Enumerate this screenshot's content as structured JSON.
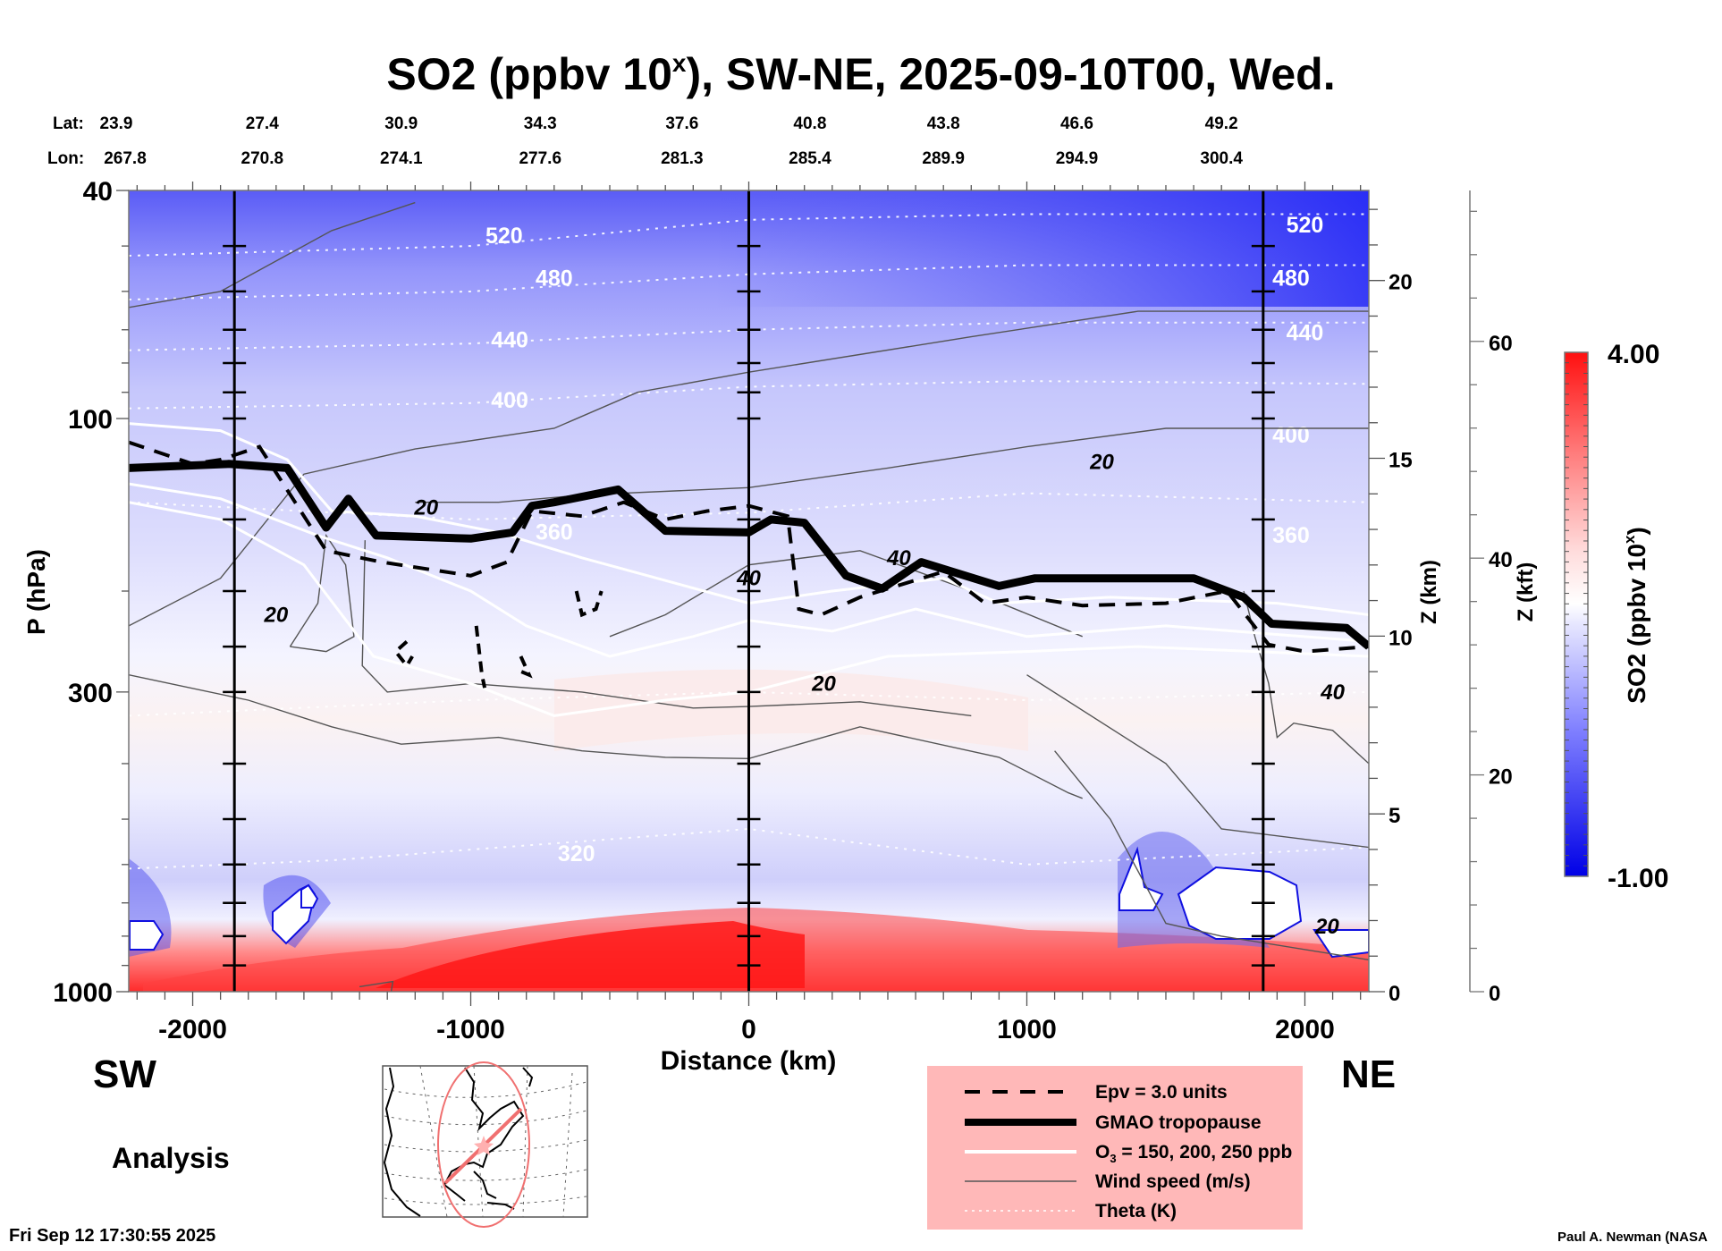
{
  "chart_data": {
    "type": "heatmap",
    "title": "SO2 (ppbv 10^x), SW-NE, 2025-09-10T00, Wed.",
    "title_parts": {
      "pre": "SO2 (ppbv 10",
      "sup": "x",
      "post": "), SW-NE, 2025-09-10T00, Wed."
    },
    "xlabel": "Distance (km)",
    "ylabel": "P (hPa)",
    "xlim": [
      -2230,
      2230
    ],
    "ylim": [
      1000,
      40
    ],
    "yscale": "log",
    "x_ticks": [
      -2000,
      -1000,
      0,
      1000,
      2000
    ],
    "y_ticks": [
      40,
      100,
      300,
      1000
    ],
    "z_km_axis": {
      "label": "Z (km)",
      "ticks": [
        0,
        5,
        10,
        15,
        20
      ]
    },
    "z_kft_axis": {
      "label": "Z (kft)",
      "ticks": [
        0,
        20,
        40,
        60
      ]
    },
    "lat_label": "Lat:",
    "lon_label": "Lon:",
    "lat": [
      "23.9",
      "27.4",
      "30.9",
      "34.3",
      "37.6",
      "40.8",
      "43.8",
      "46.6",
      "49.2"
    ],
    "lon": [
      "267.8",
      "270.8",
      "274.1",
      "277.6",
      "281.3",
      "285.4",
      "289.9",
      "294.9",
      "300.4"
    ],
    "latlon_x_km": [
      -2100,
      -1750,
      -1250,
      -750,
      -240,
      220,
      700,
      1180,
      1700
    ],
    "vertical_markers_km": [
      -1850,
      0,
      1850
    ],
    "direction_left": "SW",
    "direction_right": "NE",
    "colorbar": {
      "label_pre": "SO2 (ppbv 10",
      "label_sup": "x",
      "label_post": ")",
      "min": -1.0,
      "max": 4.0,
      "min_label": "-1.00",
      "max_label": "4.00",
      "white_at": 1.4,
      "colors": {
        "low": "#0000e6",
        "mid": "#ffffff",
        "high": "#ff0000"
      }
    },
    "theta_contours": [
      {
        "value": 520,
        "label": "520",
        "points": [
          [
            -2230,
            52
          ],
          [
            -1000,
            50
          ],
          [
            0,
            45
          ],
          [
            1000,
            44
          ],
          [
            2230,
            44
          ]
        ],
        "label_at": [
          [
            -880,
            48
          ],
          [
            2000,
            46
          ]
        ]
      },
      {
        "value": 480,
        "label": "480",
        "points": [
          [
            -2230,
            62
          ],
          [
            -1000,
            60
          ],
          [
            0,
            56
          ],
          [
            1000,
            54
          ],
          [
            2230,
            54
          ]
        ],
        "label_at": [
          [
            -700,
            57
          ],
          [
            1950,
            57
          ]
        ]
      },
      {
        "value": 440,
        "label": "440",
        "points": [
          [
            -2230,
            76
          ],
          [
            -1000,
            74
          ],
          [
            0,
            70
          ],
          [
            1000,
            68
          ],
          [
            2230,
            68
          ]
        ],
        "label_at": [
          [
            -860,
            73
          ],
          [
            2000,
            71
          ]
        ]
      },
      {
        "value": 400,
        "label": "400",
        "points": [
          [
            -2230,
            96
          ],
          [
            -1000,
            94
          ],
          [
            0,
            88
          ],
          [
            1000,
            86
          ],
          [
            2230,
            87
          ]
        ],
        "label_at": [
          [
            -860,
            93
          ],
          [
            1950,
            107
          ]
        ]
      },
      {
        "value": 360,
        "label": "360",
        "points": [
          [
            -2230,
            140
          ],
          [
            -1000,
            150
          ],
          [
            0,
            146
          ],
          [
            1000,
            135
          ],
          [
            2230,
            140
          ]
        ],
        "label_at": [
          [
            -700,
            158
          ],
          [
            1950,
            160
          ]
        ]
      },
      {
        "value": 320,
        "label": "320",
        "points": [
          [
            -2230,
            610
          ],
          [
            -1500,
            590
          ],
          [
            -1000,
            565
          ],
          [
            0,
            520
          ],
          [
            1000,
            600
          ],
          [
            2230,
            560
          ]
        ],
        "label_at": [
          [
            -620,
            575
          ]
        ]
      },
      {
        "value": 300,
        "label": "",
        "points": [
          [
            -2230,
            330
          ],
          [
            -1000,
            310
          ],
          [
            0,
            300
          ],
          [
            1000,
            310
          ],
          [
            2230,
            300
          ]
        ],
        "label_at": []
      }
    ],
    "wind_speed_labels": [
      {
        "label": "20",
        "x": -1160,
        "p": 143
      },
      {
        "label": "20",
        "x": -1700,
        "p": 220
      },
      {
        "label": "20",
        "x": 1270,
        "p": 119
      },
      {
        "label": "20",
        "x": 270,
        "p": 290
      },
      {
        "label": "40",
        "x": 0,
        "p": 190
      },
      {
        "label": "40",
        "x": 540,
        "p": 175
      },
      {
        "label": "40",
        "x": 2100,
        "p": 300
      },
      {
        "label": "20",
        "x": 2080,
        "p": 770
      }
    ],
    "gmao_tropopause": [
      [
        -2230,
        122
      ],
      [
        -1870,
        120
      ],
      [
        -1660,
        122
      ],
      [
        -1520,
        155
      ],
      [
        -1440,
        138
      ],
      [
        -1340,
        160
      ],
      [
        -1000,
        162
      ],
      [
        -850,
        158
      ],
      [
        -780,
        142
      ],
      [
        -700,
        140
      ],
      [
        -470,
        133
      ],
      [
        -300,
        157
      ],
      [
        0,
        158
      ],
      [
        80,
        150
      ],
      [
        200,
        152
      ],
      [
        350,
        188
      ],
      [
        480,
        198
      ],
      [
        620,
        178
      ],
      [
        900,
        196
      ],
      [
        1030,
        190
      ],
      [
        1600,
        190
      ],
      [
        1780,
        205
      ],
      [
        1880,
        228
      ],
      [
        2150,
        232
      ],
      [
        2230,
        250
      ]
    ],
    "epv_3": [
      [
        -2230,
        110
      ],
      [
        -2000,
        120
      ],
      [
        -1900,
        118
      ],
      [
        -1760,
        112
      ],
      [
        -1520,
        170
      ],
      [
        -1320,
        178
      ],
      [
        -1000,
        188
      ],
      [
        -870,
        178
      ],
      [
        -780,
        145
      ],
      [
        -600,
        148
      ],
      [
        -450,
        140
      ],
      [
        -300,
        150
      ],
      [
        -150,
        145
      ],
      [
        0,
        142
      ],
      [
        140,
        148
      ],
      [
        180,
        215
      ],
      [
        260,
        220
      ],
      [
        400,
        205
      ],
      [
        700,
        185
      ],
      [
        850,
        210
      ],
      [
        1000,
        205
      ],
      [
        1200,
        212
      ],
      [
        1500,
        210
      ],
      [
        1720,
        200
      ],
      [
        1870,
        248
      ],
      [
        2000,
        255
      ],
      [
        2230,
        250
      ]
    ],
    "legend": [
      {
        "label": "Epv = 3.0 units",
        "style": "dashed-thick"
      },
      {
        "label": "GMAO tropopause",
        "style": "solid-heavy"
      },
      {
        "label_pre": "O",
        "label_sub": "3",
        "label_post": " = 150, 200, 250 ppb",
        "style": "solid-white"
      },
      {
        "label": "Wind speed (m/s)",
        "style": "thin-gray"
      },
      {
        "label": "Theta (K)",
        "style": "dotted-white"
      }
    ],
    "legend_bg": "#ffb8b8",
    "analysis_label": "Analysis",
    "timestamp": "Fri Sep 12 17:30:55 2025",
    "credit": "Paul A. Newman (NASA"
  }
}
